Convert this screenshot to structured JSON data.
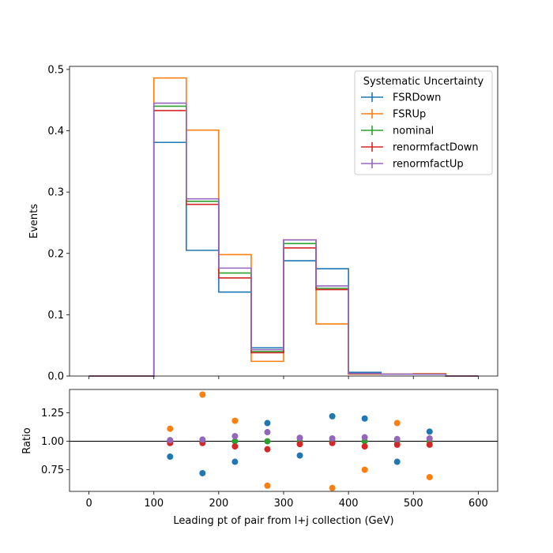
{
  "chart_data": [
    {
      "panel": "main",
      "type": "step",
      "ylabel": "Events",
      "xlabel": "",
      "xlim": [
        -30,
        630
      ],
      "ylim": [
        0,
        0.505
      ],
      "yticks": [
        0.0,
        0.1,
        0.2,
        0.3,
        0.4,
        0.5
      ],
      "ytick_labels": [
        "0.0",
        "0.1",
        "0.2",
        "0.3",
        "0.4",
        "0.5"
      ],
      "bin_edges": [
        0,
        50,
        100,
        150,
        200,
        250,
        300,
        350,
        400,
        450,
        500,
        550,
        600
      ],
      "legend": {
        "title": "Systematic Uncertainty",
        "placement": "top-right"
      },
      "series": [
        {
          "name": "FSRDown",
          "color": "#1f77b4",
          "values": [
            0,
            0,
            0.381,
            0.205,
            0.137,
            0.046,
            0.188,
            0.175,
            0.006,
            0.003,
            0.003,
            0
          ]
        },
        {
          "name": "FSRUp",
          "color": "#ff7f0e",
          "values": [
            0,
            0,
            0.486,
            0.401,
            0.198,
            0.024,
            0.222,
            0.085,
            0.003,
            0.003,
            0.004,
            0
          ]
        },
        {
          "name": "nominal",
          "color": "#2ca02c",
          "values": [
            0,
            0,
            0.44,
            0.285,
            0.168,
            0.04,
            0.216,
            0.143,
            0.004,
            0.003,
            0.003,
            0
          ]
        },
        {
          "name": "renormfactDown",
          "color": "#d62728",
          "values": [
            0,
            0,
            0.433,
            0.28,
            0.16,
            0.038,
            0.209,
            0.141,
            0.004,
            0.003,
            0.003,
            0
          ]
        },
        {
          "name": "renormfactUp",
          "color": "#9467bd",
          "values": [
            0,
            0,
            0.445,
            0.289,
            0.176,
            0.043,
            0.222,
            0.147,
            0.004,
            0.003,
            0.003,
            0
          ]
        }
      ]
    },
    {
      "panel": "ratio",
      "type": "scatter",
      "ylabel": "Ratio",
      "xlabel": "Leading pt of pair from l+j collection (GeV)",
      "xlim": [
        -30,
        630
      ],
      "ylim": [
        0.56,
        1.455
      ],
      "yticks": [
        0.75,
        1.0,
        1.25
      ],
      "ytick_labels": [
        "0.75",
        "1.00",
        "1.25"
      ],
      "xticks": [
        0,
        100,
        200,
        300,
        400,
        500,
        600
      ],
      "xtick_labels": [
        "0",
        "100",
        "200",
        "300",
        "400",
        "500",
        "600"
      ],
      "reference_line": 1.0,
      "x": [
        125,
        175,
        225,
        275,
        325,
        375,
        425,
        475,
        525
      ],
      "series": [
        {
          "name": "FSRDown",
          "color": "#1f77b4",
          "values": [
            0.865,
            0.72,
            0.82,
            1.16,
            0.875,
            1.22,
            1.2,
            0.82,
            1.085
          ]
        },
        {
          "name": "FSRUp",
          "color": "#ff7f0e",
          "values": [
            1.11,
            1.41,
            1.18,
            0.61,
            1.03,
            0.59,
            0.75,
            1.16,
            0.685
          ]
        },
        {
          "name": "nominal",
          "color": "#2ca02c",
          "values": [
            1.0,
            1.0,
            1.0,
            1.0,
            1.0,
            1.0,
            1.0,
            1.0,
            1.0
          ]
        },
        {
          "name": "renormfactDown",
          "color": "#d62728",
          "values": [
            0.985,
            0.985,
            0.955,
            0.93,
            0.975,
            0.985,
            0.955,
            0.97,
            0.97
          ]
        },
        {
          "name": "renormfactUp",
          "color": "#9467bd",
          "values": [
            1.01,
            1.015,
            1.045,
            1.08,
            1.03,
            1.025,
            1.035,
            1.02,
            1.025
          ]
        }
      ]
    }
  ]
}
